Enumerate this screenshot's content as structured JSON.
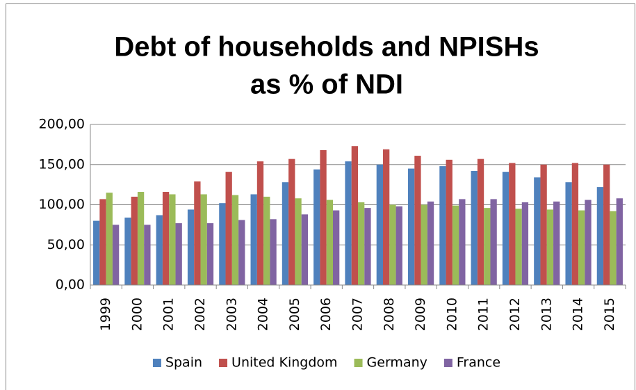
{
  "chart_data": {
    "type": "bar",
    "title": [
      "Debt of households and NPISHs",
      "as % of NDI"
    ],
    "categories": [
      "1999",
      "2000",
      "2001",
      "2002",
      "2003",
      "2004",
      "2005",
      "2006",
      "2007",
      "2008",
      "2009",
      "2010",
      "2011",
      "2012",
      "2013",
      "2014",
      "2015"
    ],
    "series": [
      {
        "name": "Spain",
        "color": "#4f81bd",
        "values": [
          80,
          84,
          87,
          94,
          102,
          113,
          128,
          144,
          154,
          150,
          145,
          148,
          142,
          141,
          134,
          128,
          122
        ]
      },
      {
        "name": "United Kingdom",
        "color": "#c0504d",
        "values": [
          107,
          110,
          116,
          129,
          141,
          154,
          157,
          168,
          173,
          169,
          161,
          156,
          157,
          152,
          150,
          152,
          150
        ]
      },
      {
        "name": "Germany",
        "color": "#9bbb59",
        "values": [
          115,
          116,
          113,
          113,
          112,
          110,
          108,
          106,
          103,
          100,
          100,
          99,
          96,
          95,
          94,
          93,
          92
        ]
      },
      {
        "name": "France",
        "color": "#8064a2",
        "values": [
          75,
          75,
          77,
          77,
          81,
          82,
          88,
          93,
          96,
          98,
          104,
          107,
          107,
          103,
          104,
          106,
          108
        ]
      }
    ],
    "ylim": [
      0,
      200
    ],
    "yticks": [
      {
        "value": 0,
        "label": "0,00"
      },
      {
        "value": 50,
        "label": "50,00"
      },
      {
        "value": 100,
        "label": "100,00"
      },
      {
        "value": 150,
        "label": "150,00"
      },
      {
        "value": 200,
        "label": "200,00"
      }
    ],
    "grid": true,
    "legend": "bottom"
  }
}
